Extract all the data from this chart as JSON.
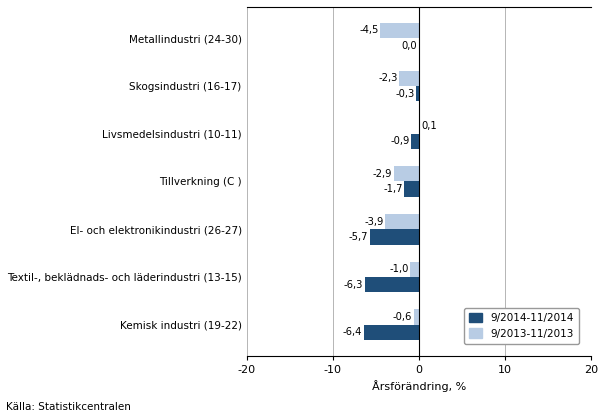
{
  "categories": [
    "Metallindustri (24-30)",
    "Skogsindustri (16-17)",
    "Livsmedelsindustri (10-11)",
    "Tillverkning (C )",
    "El- och elektronikindustri (26-27)",
    "Textil-, beklädnads- och läderindustri (13-15)",
    "Kemisk industri (19-22)"
  ],
  "series1_label": "9/2014-11/2014",
  "series2_label": "9/2013-11/2013",
  "series1_values": [
    0.0,
    -0.3,
    -0.9,
    -1.7,
    -5.7,
    -6.3,
    -6.4
  ],
  "series2_values": [
    -4.5,
    -2.3,
    0.1,
    -2.9,
    -3.9,
    -1.0,
    -0.6
  ],
  "series1_color": "#1F4E79",
  "series2_color": "#B8CCE4",
  "xlabel": "Årsförändring, %",
  "xlim": [
    -20,
    20
  ],
  "xticks": [
    -20,
    -10,
    0,
    10,
    20
  ],
  "source": "Källa: Statistikcentralen",
  "bar_height": 0.32,
  "background_color": "#FFFFFF",
  "grid_color": "#AAAAAA"
}
